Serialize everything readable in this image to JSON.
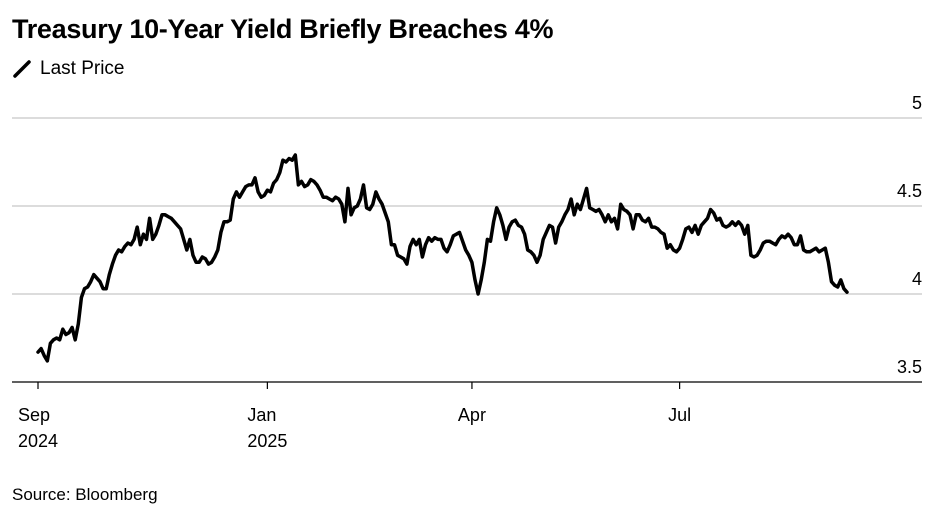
{
  "chart_data": {
    "type": "line",
    "title": "Treasury 10-Year Yield Briefly Breaches 4%",
    "source": "Source: Bloomberg",
    "ylim": [
      3.5,
      5
    ],
    "yticks": [
      3.5,
      4,
      4.5,
      5
    ],
    "grid": true,
    "categories": [
      "Sep\n2024",
      null,
      null,
      null,
      null,
      null,
      null,
      null,
      null,
      null,
      null,
      null,
      null,
      null,
      null,
      null,
      null,
      null,
      null,
      null,
      null,
      null,
      null,
      null,
      null,
      null,
      null,
      null,
      null,
      null,
      null,
      null,
      null,
      null,
      null,
      null,
      null,
      null,
      null,
      null,
      null,
      null,
      null,
      null,
      null,
      null,
      null,
      null,
      null,
      null,
      null,
      null,
      null,
      null,
      null,
      null,
      null,
      null,
      null,
      null,
      null,
      null,
      null,
      null,
      null,
      null,
      null,
      null,
      null,
      null,
      null,
      null,
      null,
      null,
      "Jan\n2025",
      null,
      null,
      null,
      null,
      null,
      null,
      null,
      null,
      null,
      null,
      null,
      null,
      null,
      null,
      null,
      null,
      null,
      null,
      null,
      null,
      null,
      null,
      null,
      null,
      null,
      null,
      null,
      null,
      null,
      null,
      null,
      null,
      null,
      null,
      null,
      null,
      null,
      null,
      null,
      null,
      null,
      null,
      null,
      null,
      null,
      null,
      null,
      null,
      null,
      null,
      null,
      null,
      null,
      null,
      null,
      null,
      null,
      null,
      null,
      null,
      null,
      null,
      null,
      null,
      null,
      "Apr",
      null,
      null,
      null,
      null,
      null,
      null,
      null,
      null,
      null,
      null,
      null,
      null,
      null,
      null,
      null,
      null,
      null,
      null,
      null,
      null,
      null,
      null,
      null,
      null,
      null,
      null,
      null,
      null,
      null,
      null,
      null,
      null,
      null,
      null,
      null,
      null,
      null,
      null,
      null,
      null,
      null,
      null,
      null,
      null,
      null,
      null,
      null,
      null,
      null,
      null,
      null,
      null,
      null,
      null,
      null,
      null,
      null,
      null,
      null,
      null,
      null,
      null,
      null,
      null,
      null,
      null,
      "Jul",
      null,
      null,
      null,
      null,
      null,
      null,
      null,
      null,
      null,
      null,
      null,
      null,
      null,
      null,
      null,
      null,
      null,
      null,
      null,
      null,
      null,
      null,
      null,
      null,
      null,
      null,
      null,
      null,
      null,
      null,
      null,
      null,
      null,
      null,
      null,
      null,
      null,
      null,
      null,
      null,
      null,
      null,
      null,
      null,
      null,
      null,
      null,
      null,
      null,
      null,
      null,
      null,
      null,
      null
    ],
    "series": [
      {
        "name": "Last Price",
        "color": "#000000",
        "values": [
          3.67,
          3.69,
          3.65,
          3.62,
          3.72,
          3.74,
          3.75,
          3.74,
          3.8,
          3.77,
          3.78,
          3.81,
          3.74,
          3.83,
          3.98,
          4.03,
          4.04,
          4.07,
          4.11,
          4.09,
          4.07,
          4.03,
          4.03,
          4.11,
          4.17,
          4.22,
          4.25,
          4.24,
          4.27,
          4.29,
          4.28,
          4.31,
          4.38,
          4.28,
          4.34,
          4.31,
          4.43,
          4.31,
          4.34,
          4.39,
          4.45,
          4.45,
          4.44,
          4.43,
          4.41,
          4.39,
          4.37,
          4.31,
          4.25,
          4.31,
          4.22,
          4.18,
          4.18,
          4.21,
          4.2,
          4.17,
          4.18,
          4.21,
          4.25,
          4.35,
          4.41,
          4.41,
          4.42,
          4.54,
          4.58,
          4.55,
          4.58,
          4.61,
          4.62,
          4.62,
          4.66,
          4.58,
          4.55,
          4.56,
          4.59,
          4.58,
          4.63,
          4.65,
          4.69,
          4.76,
          4.75,
          4.77,
          4.76,
          4.79,
          4.62,
          4.64,
          4.61,
          4.62,
          4.65,
          4.64,
          4.62,
          4.59,
          4.55,
          4.55,
          4.54,
          4.53,
          4.55,
          4.54,
          4.51,
          4.41,
          4.6,
          4.45,
          4.49,
          4.5,
          4.54,
          4.62,
          4.49,
          4.48,
          4.51,
          4.58,
          4.54,
          4.51,
          4.46,
          4.41,
          4.28,
          4.28,
          4.22,
          4.21,
          4.2,
          4.17,
          4.27,
          4.31,
          4.28,
          4.31,
          4.21,
          4.28,
          4.32,
          4.3,
          4.32,
          4.31,
          4.31,
          4.26,
          4.24,
          4.28,
          4.33,
          4.34,
          4.35,
          4.3,
          4.25,
          4.22,
          4.18,
          4.08,
          4.0,
          4.08,
          4.18,
          4.31,
          4.3,
          4.41,
          4.49,
          4.45,
          4.39,
          4.31,
          4.38,
          4.41,
          4.42,
          4.39,
          4.38,
          4.34,
          4.25,
          4.24,
          4.22,
          4.18,
          4.22,
          4.31,
          4.35,
          4.39,
          4.38,
          4.29,
          4.38,
          4.41,
          4.45,
          4.48,
          4.54,
          4.45,
          4.51,
          4.48,
          4.54,
          4.6,
          4.49,
          4.48,
          4.47,
          4.48,
          4.45,
          4.41,
          4.45,
          4.41,
          4.43,
          4.37,
          4.51,
          4.48,
          4.47,
          4.45,
          4.37,
          4.45,
          4.45,
          4.42,
          4.41,
          4.43,
          4.38,
          4.38,
          4.37,
          4.35,
          4.34,
          4.26,
          4.28,
          4.25,
          4.24,
          4.26,
          4.31,
          4.37,
          4.38,
          4.35,
          4.39,
          4.34,
          4.39,
          4.41,
          4.43,
          4.48,
          4.46,
          4.42,
          4.43,
          4.39,
          4.38,
          4.39,
          4.41,
          4.39,
          4.41,
          4.39,
          4.34,
          4.39,
          4.22,
          4.21,
          4.22,
          4.25,
          4.29,
          4.3,
          4.3,
          4.29,
          4.28,
          4.31,
          4.33,
          4.32,
          4.34,
          4.32,
          4.28,
          4.28,
          4.33,
          4.25,
          4.24,
          4.24,
          4.25,
          4.26,
          4.24,
          4.25,
          4.26,
          4.18,
          4.07,
          4.05,
          4.04,
          4.08,
          4.03,
          4.01
        ]
      }
    ]
  }
}
